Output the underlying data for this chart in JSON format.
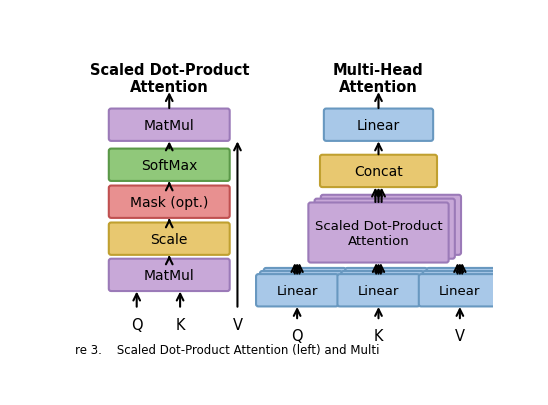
{
  "title_left": "Scaled Dot-Product\nAttention",
  "title_right": "Multi-Head\nAttention",
  "caption": "re 3.    Scaled Dot-Product Attention (left) and Multi",
  "colors": {
    "purple": "#C8A8D8",
    "purple_border": "#9B7AB8",
    "green": "#90C87A",
    "green_border": "#5A9848",
    "red": "#E89090",
    "red_border": "#C05050",
    "yellow": "#E8C870",
    "yellow_border": "#C0A030",
    "blue": "#A8C8E8",
    "blue_border": "#6898C0",
    "white": "#FFFFFF",
    "black": "#000000"
  },
  "background": "#FFFFFF",
  "fig_width": 5.48,
  "fig_height": 4.06,
  "dpi": 100
}
